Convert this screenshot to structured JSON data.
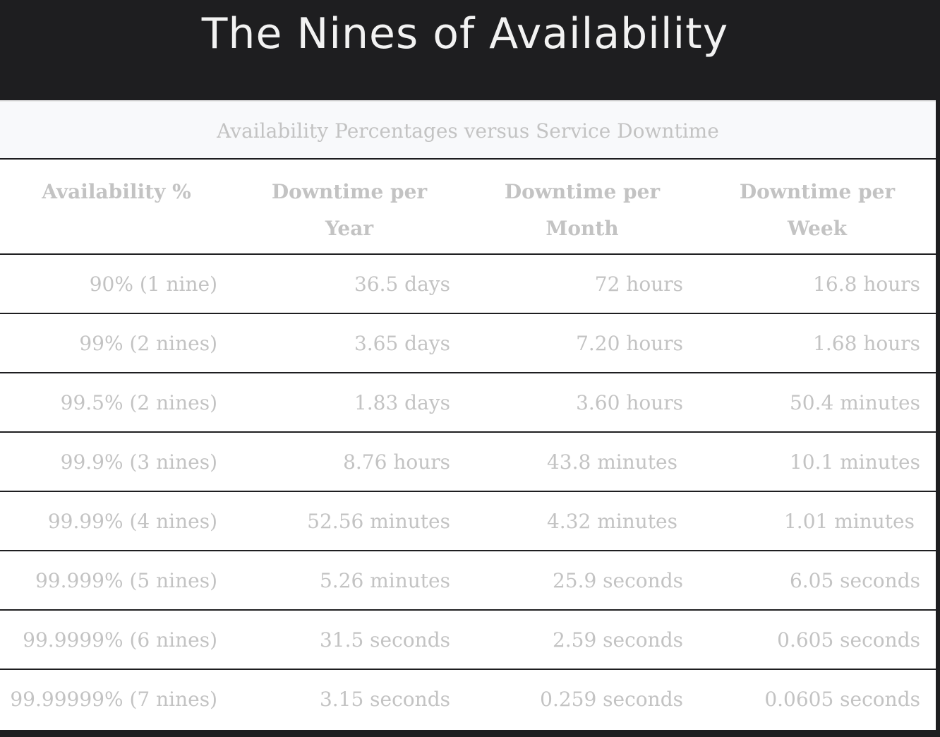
{
  "page": {
    "title": "The Nines of Availability"
  },
  "table": {
    "caption": "Availability Percentages versus Service Downtime",
    "headers": [
      "Availability %",
      "Downtime per Year",
      "Downtime per Month",
      "Downtime per Week"
    ],
    "rows": [
      [
        "90% (1 nine)",
        "36.5 days",
        "72 hours",
        "16.8 hours"
      ],
      [
        "99% (2 nines)",
        "3.65 days",
        "7.20 hours",
        "1.68 hours"
      ],
      [
        "99.5% (2 nines)",
        "1.83 days",
        "3.60 hours",
        "50.4 minutes"
      ],
      [
        "99.9% (3 nines)",
        "8.76 hours",
        "43.8 minutes",
        "10.1 minutes"
      ],
      [
        "99.99% (4 nines)",
        "52.56 minutes",
        "4.32 minutes",
        "1.01 minutes"
      ],
      [
        "99.999% (5 nines)",
        "5.26 minutes",
        "25.9 seconds",
        "6.05 seconds"
      ],
      [
        "99.9999% (6 nines)",
        "31.5 seconds",
        "2.59 seconds",
        "0.605 seconds"
      ],
      [
        "99.99999% (7 nines)",
        "3.15 seconds",
        "0.259 seconds",
        "0.0605 seconds"
      ]
    ]
  },
  "colors": {
    "header_bg": "#1e1e20",
    "title_text": "#f2f2f2",
    "table_text": "#c3c3c3",
    "caption_bg": "#f8f9fb"
  }
}
